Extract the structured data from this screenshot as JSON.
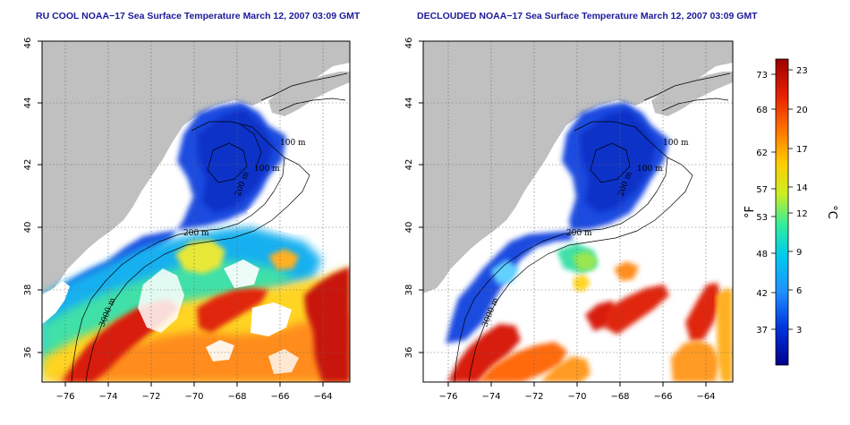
{
  "panels": [
    {
      "id": "ru-cool",
      "title": "RU COOL NOAA−17 Sea Surface Temperature March 12, 2007 03:09 GMT"
    },
    {
      "id": "declouded",
      "title": "DECLOUDED NOAA−17 Sea Surface Temperature March 12, 2007 03:09 GMT"
    }
  ],
  "axes": {
    "x_ticks": [
      "−76",
      "−74",
      "−72",
      "−70",
      "−68",
      "−66",
      "−64"
    ],
    "x_values": [
      -76,
      -74,
      -72,
      -70,
      -68,
      -66,
      -64
    ],
    "y_ticks": [
      "36",
      "38",
      "40",
      "42",
      "44",
      "46"
    ],
    "y_values": [
      36,
      38,
      40,
      42,
      44,
      46
    ],
    "lon_range": [
      -77.2,
      -63
    ],
    "lat_range": [
      35,
      46
    ]
  },
  "depth_labels": [
    "100 m",
    "100 m",
    "200 m",
    "200 m",
    "3000 m"
  ],
  "colorbar": {
    "fahrenheit_label": "°F",
    "celsius_label": "°C",
    "fahrenheit_ticks": [
      "73",
      "68",
      "62",
      "57",
      "53",
      "48",
      "42",
      "37"
    ],
    "celsius_ticks": [
      "23",
      "20",
      "17",
      "14",
      "12",
      "9",
      "6",
      "3"
    ],
    "colors": [
      "#00008b",
      "#0033dd",
      "#1e90ff",
      "#00ccee",
      "#33ee99",
      "#ccee22",
      "#ffcc00",
      "#ff7a00",
      "#e82000",
      "#9a0000"
    ]
  },
  "colors": {
    "land": "#c0c0c0",
    "no_data": "#ffffff",
    "title_text": "#1a1a9a"
  }
}
